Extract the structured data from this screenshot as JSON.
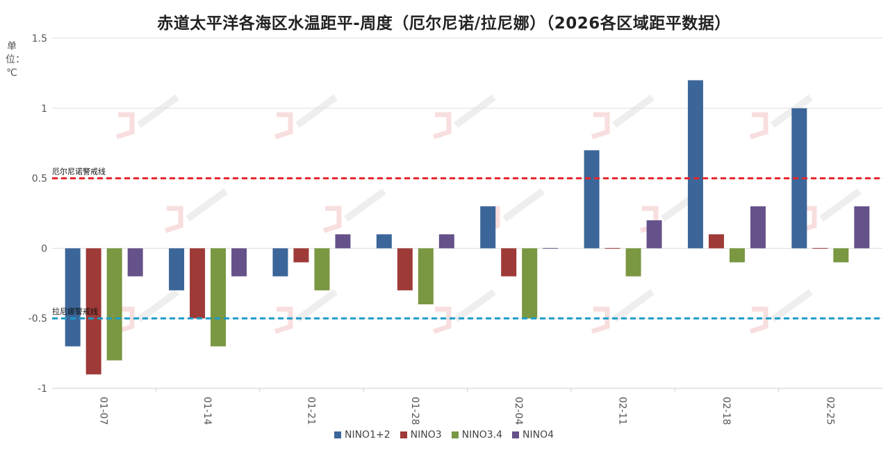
{
  "chart_data": {
    "type": "bar",
    "title": "赤道太平洋各海区水温距平-周度（厄尔尼诺/拉尼娜）（2026各区域距平数据）",
    "ylabel": "单位：℃",
    "xlabel": "",
    "ylim": [
      -1,
      1.5
    ],
    "yticks": [
      "1.5",
      "1",
      "0.5",
      "0",
      "-0.5",
      "-1"
    ],
    "ytick_values": [
      1.5,
      1,
      0.5,
      0,
      -0.5,
      -1
    ],
    "categories": [
      "01-07",
      "01-14",
      "01-21",
      "01-28",
      "02-04",
      "02-11",
      "02-18",
      "02-25"
    ],
    "series": [
      {
        "name": "NINO1+2",
        "color": "#3c6699",
        "values": [
          -0.7,
          -0.3,
          -0.2,
          0.1,
          0.3,
          0.7,
          1.2,
          1.0
        ]
      },
      {
        "name": "NINO3",
        "color": "#9e3a38",
        "values": [
          -0.9,
          -0.5,
          -0.1,
          -0.3,
          -0.2,
          0.0,
          0.1,
          0.0
        ]
      },
      {
        "name": "NINO3.4",
        "color": "#7a9741",
        "values": [
          -0.8,
          -0.7,
          -0.3,
          -0.4,
          -0.5,
          -0.2,
          -0.1,
          -0.1
        ]
      },
      {
        "name": "NINO4",
        "color": "#66528a",
        "values": [
          -0.2,
          -0.2,
          0.1,
          0.1,
          0.0,
          0.2,
          0.3,
          0.3
        ]
      }
    ],
    "reference_lines": [
      {
        "label": "厄尔尼诺警戒线",
        "value": 0.5,
        "color": "#e8262b"
      },
      {
        "label": "拉尼娜警戒线",
        "value": -0.5,
        "color": "#1b9bc8"
      }
    ],
    "grid": true,
    "legend": "bottom-center"
  },
  "colors": {
    "gridline": "#dddddd",
    "axis_text": "#555555",
    "watermark": "#f3c8c8"
  }
}
